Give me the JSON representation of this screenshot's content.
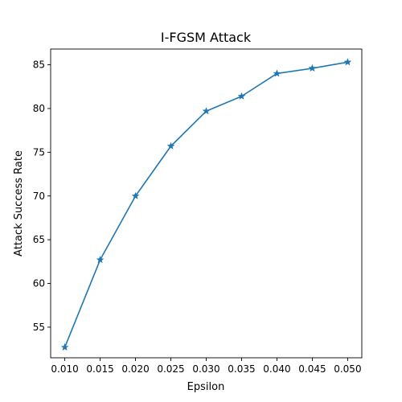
{
  "chart_data": {
    "type": "line",
    "title": "I-FGSM Attack",
    "xlabel": "Epsilon",
    "ylabel": "Attack Success Rate",
    "xlim": [
      0.008,
      0.052
    ],
    "ylim": [
      51.5,
      86.8
    ],
    "grid": false,
    "marker": "star",
    "color": "#1f77b4",
    "x_ticks": [
      "0.010",
      "0.015",
      "0.020",
      "0.025",
      "0.030",
      "0.035",
      "0.040",
      "0.045",
      "0.050"
    ],
    "y_ticks": [
      "55",
      "60",
      "65",
      "70",
      "75",
      "80",
      "85"
    ],
    "series": [
      {
        "x": [
          0.01,
          0.015,
          0.02,
          0.025,
          0.03,
          0.035,
          0.04,
          0.045,
          0.05
        ],
        "y": [
          52.7,
          62.7,
          70.0,
          75.7,
          79.7,
          81.4,
          84.0,
          84.6,
          85.3
        ]
      }
    ]
  }
}
